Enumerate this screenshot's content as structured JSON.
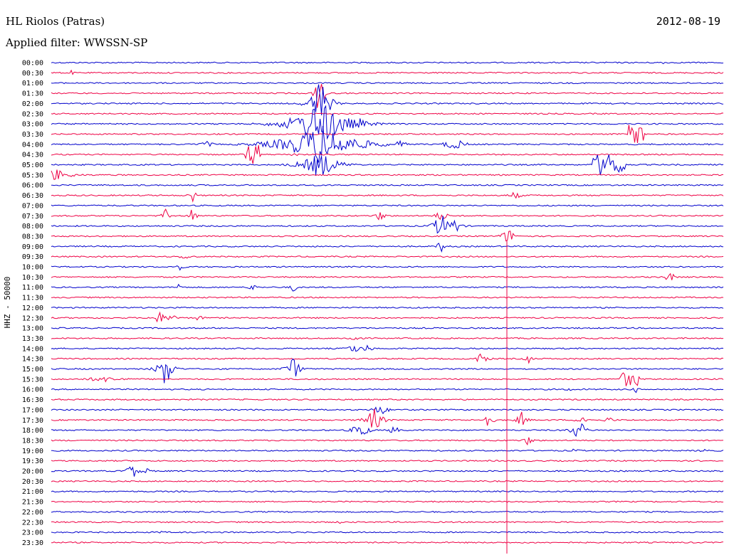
{
  "header": {
    "station": "HL Riolos (Patras)",
    "date": "2012-08-19",
    "filter": "Applied filter: WWSSN-SP"
  },
  "chart_data": {
    "type": "line",
    "ylabel": "HHZ - 50000",
    "colors": [
      "#0000cc",
      "#ee0044"
    ],
    "rows": [
      "00:00",
      "00:30",
      "01:00",
      "01:30",
      "02:00",
      "02:30",
      "03:00",
      "03:30",
      "04:00",
      "04:30",
      "05:00",
      "05:30",
      "06:00",
      "06:30",
      "07:00",
      "07:30",
      "08:00",
      "08:30",
      "09:00",
      "09:30",
      "10:00",
      "10:30",
      "11:00",
      "11:30",
      "12:00",
      "12:30",
      "13:00",
      "13:30",
      "14:00",
      "14:30",
      "15:00",
      "15:30",
      "16:00",
      "16:30",
      "17:00",
      "17:30",
      "18:00",
      "18:30",
      "19:00",
      "19:30",
      "20:00",
      "20:30",
      "21:00",
      "21:30",
      "22:00",
      "22:30",
      "23:00",
      "23:30"
    ],
    "events": [
      {
        "row": 0,
        "x": 0.91,
        "amp": 3,
        "w": 0.006
      },
      {
        "row": 1,
        "x": 0.03,
        "amp": 4,
        "w": 0.004
      },
      {
        "row": 3,
        "x": 0.4,
        "amp": 60,
        "w": 0.004
      },
      {
        "row": 4,
        "x": 0.4,
        "amp": 40,
        "w": 0.01
      },
      {
        "row": 6,
        "x": 0.4,
        "amp": 35,
        "w": 0.03
      },
      {
        "row": 6,
        "x": 0.46,
        "amp": 8,
        "w": 0.008
      },
      {
        "row": 7,
        "x": 0.87,
        "amp": 14,
        "w": 0.012,
        "burst": true
      },
      {
        "row": 8,
        "x": 0.4,
        "amp": 30,
        "w": 0.04
      },
      {
        "row": 8,
        "x": 0.23,
        "amp": 5,
        "w": 0.01
      },
      {
        "row": 8,
        "x": 0.52,
        "amp": 8,
        "w": 0.006
      },
      {
        "row": 8,
        "x": 0.6,
        "amp": 10,
        "w": 0.012
      },
      {
        "row": 9,
        "x": 0.3,
        "amp": 14,
        "w": 0.012,
        "burst": true
      },
      {
        "row": 9,
        "x": 0.36,
        "amp": 3,
        "w": 0.01
      },
      {
        "row": 10,
        "x": 0.83,
        "amp": 15,
        "w": 0.025,
        "burst": true
      },
      {
        "row": 10,
        "x": 0.4,
        "amp": 20,
        "w": 0.02
      },
      {
        "row": 11,
        "x": 0.0,
        "amp": 12,
        "w": 0.02
      },
      {
        "row": 13,
        "x": 0.21,
        "amp": 12,
        "w": 0.004
      },
      {
        "row": 13,
        "x": 0.69,
        "amp": 6,
        "w": 0.008
      },
      {
        "row": 15,
        "x": 0.17,
        "amp": 10,
        "w": 0.004
      },
      {
        "row": 15,
        "x": 0.21,
        "amp": 14,
        "w": 0.004
      },
      {
        "row": 15,
        "x": 0.49,
        "amp": 9,
        "w": 0.006
      },
      {
        "row": 15,
        "x": 0.58,
        "amp": 8,
        "w": 0.008
      },
      {
        "row": 16,
        "x": 0.58,
        "amp": 22,
        "w": 0.008
      },
      {
        "row": 16,
        "x": 0.6,
        "amp": 12,
        "w": 0.008
      },
      {
        "row": 17,
        "x": 0.68,
        "amp": 12,
        "w": 0.008
      },
      {
        "row": 18,
        "x": 0.58,
        "amp": 12,
        "w": 0.004
      },
      {
        "row": 19,
        "x": 0.2,
        "amp": 5,
        "w": 0.008
      },
      {
        "row": 20,
        "x": 0.19,
        "amp": 6,
        "w": 0.006
      },
      {
        "row": 21,
        "x": 0.92,
        "amp": 9,
        "w": 0.006
      },
      {
        "row": 22,
        "x": 0.19,
        "amp": 7,
        "w": 0.004
      },
      {
        "row": 22,
        "x": 0.3,
        "amp": 9,
        "w": 0.004
      },
      {
        "row": 22,
        "x": 0.36,
        "amp": 9,
        "w": 0.004
      },
      {
        "row": 25,
        "x": 0.16,
        "amp": 10,
        "w": 0.008
      },
      {
        "row": 25,
        "x": 0.18,
        "amp": 8,
        "w": 0.006
      },
      {
        "row": 25,
        "x": 0.22,
        "amp": 5,
        "w": 0.006
      },
      {
        "row": 27,
        "x": 0.45,
        "amp": 6,
        "w": 0.008
      },
      {
        "row": 28,
        "x": 0.45,
        "amp": 8,
        "w": 0.008
      },
      {
        "row": 28,
        "x": 0.47,
        "amp": 7,
        "w": 0.006
      },
      {
        "row": 29,
        "x": 0.64,
        "amp": 9,
        "w": 0.008
      },
      {
        "row": 29,
        "x": 0.71,
        "amp": 9,
        "w": 0.004
      },
      {
        "row": 30,
        "x": 0.17,
        "amp": 28,
        "w": 0.008
      },
      {
        "row": 30,
        "x": 0.36,
        "amp": 18,
        "w": 0.008
      },
      {
        "row": 31,
        "x": 0.08,
        "amp": 4,
        "w": 0.03
      },
      {
        "row": 31,
        "x": 0.86,
        "amp": 10,
        "w": 0.015,
        "burst": true
      },
      {
        "row": 32,
        "x": 0.77,
        "amp": 5,
        "w": 0.004
      },
      {
        "row": 32,
        "x": 0.87,
        "amp": 5,
        "w": 0.004
      },
      {
        "row": 34,
        "x": 0.49,
        "amp": 8,
        "w": 0.01
      },
      {
        "row": 35,
        "x": 0.48,
        "amp": 18,
        "w": 0.01
      },
      {
        "row": 35,
        "x": 0.65,
        "amp": 12,
        "w": 0.006
      },
      {
        "row": 35,
        "x": 0.7,
        "amp": 12,
        "w": 0.006
      },
      {
        "row": 35,
        "x": 0.79,
        "amp": 10,
        "w": 0.006
      },
      {
        "row": 35,
        "x": 0.83,
        "amp": 6,
        "w": 0.006
      },
      {
        "row": 36,
        "x": 0.46,
        "amp": 16,
        "w": 0.008
      },
      {
        "row": 36,
        "x": 0.51,
        "amp": 6,
        "w": 0.008
      },
      {
        "row": 36,
        "x": 0.78,
        "amp": 10,
        "w": 0.008
      },
      {
        "row": 36,
        "x": 0.79,
        "amp": 10,
        "w": 0.006
      },
      {
        "row": 37,
        "x": 0.71,
        "amp": 8,
        "w": 0.006
      },
      {
        "row": 38,
        "x": 0.78,
        "amp": 5,
        "w": 0.004
      },
      {
        "row": 38,
        "x": 0.97,
        "amp": 6,
        "w": 0.004
      },
      {
        "row": 40,
        "x": 0.12,
        "amp": 14,
        "w": 0.006
      },
      {
        "row": 40,
        "x": 0.14,
        "amp": 9,
        "w": 0.004
      },
      {
        "row": 45,
        "x": 0.43,
        "amp": 3,
        "w": 0.004
      },
      {
        "row": 46,
        "x": 0.16,
        "amp": 4,
        "w": 0.004
      }
    ]
  }
}
